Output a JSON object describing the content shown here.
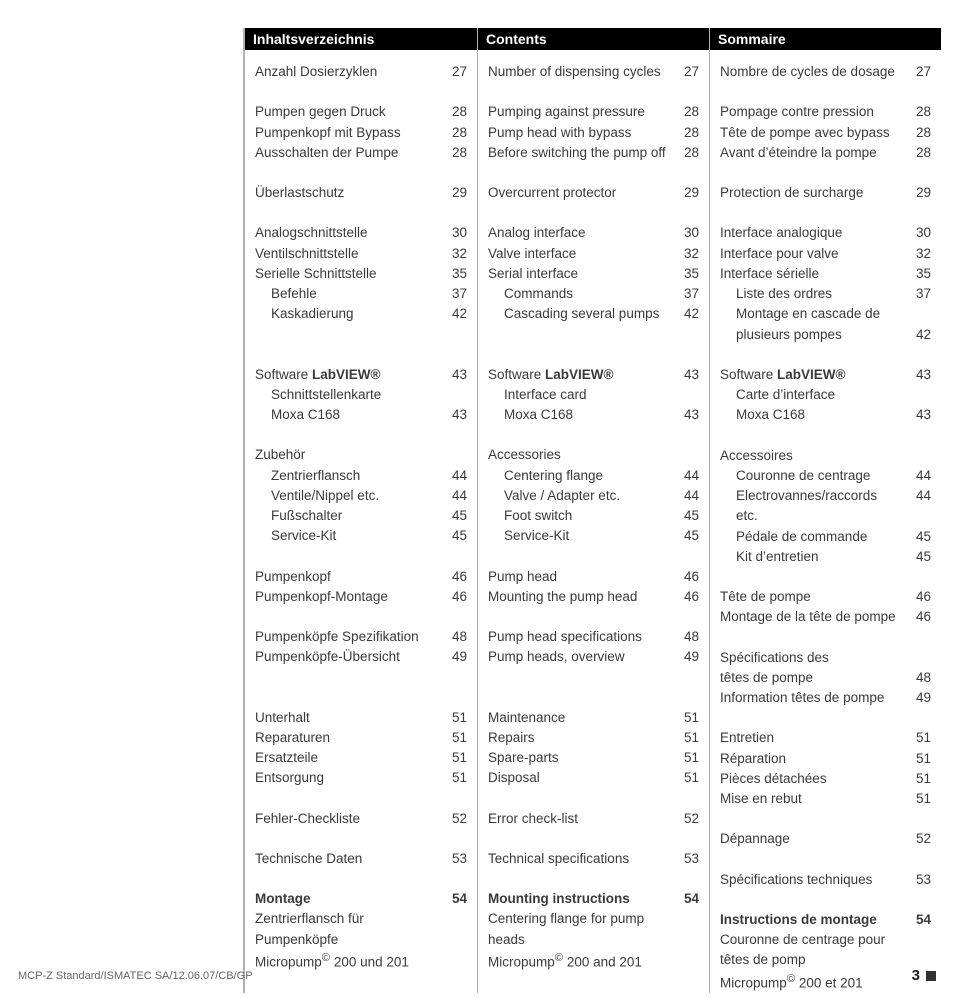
{
  "footer_left": "MCP-Z Standard/ISMATEC SA/12.06.07/CB/GP",
  "footer_page": "3",
  "columns": [
    {
      "header": "Inhaltsverzeichnis",
      "rows": [
        {
          "t": "item",
          "label": "Anzahl Dosierzyklen",
          "pg": "27"
        },
        {
          "t": "spacer"
        },
        {
          "t": "item",
          "label": "Pumpen gegen Druck",
          "pg": "28"
        },
        {
          "t": "item",
          "label": "Pumpenkopf mit Bypass",
          "pg": "28"
        },
        {
          "t": "item",
          "label": "Ausschalten der Pumpe",
          "pg": "28"
        },
        {
          "t": "spacer"
        },
        {
          "t": "item",
          "label": "Überlastschutz",
          "pg": "29"
        },
        {
          "t": "spacer"
        },
        {
          "t": "item",
          "label": "Analogschnittstelle",
          "pg": "30"
        },
        {
          "t": "item",
          "label": "Ventilschnittstelle",
          "pg": "32"
        },
        {
          "t": "item",
          "label": "Serielle Schnittstelle",
          "pg": "35"
        },
        {
          "t": "item",
          "label": "Befehle",
          "pg": "37",
          "indent": true
        },
        {
          "t": "item",
          "label": "Kaskadierung",
          "pg": "42",
          "indent": true
        },
        {
          "t": "spacer"
        },
        {
          "t": "spacer"
        },
        {
          "t": "item",
          "label_html": "Software <b>LabVIEW®</b>",
          "pg": "43"
        },
        {
          "t": "item",
          "label": "Schnittstellenkarte",
          "indent": true
        },
        {
          "t": "item",
          "label": "Moxa C168",
          "pg": "43",
          "indent": true
        },
        {
          "t": "spacer"
        },
        {
          "t": "item",
          "label": "Zubehör"
        },
        {
          "t": "item",
          "label": "Zentrierflansch",
          "pg": "44",
          "indent": true
        },
        {
          "t": "item",
          "label": "Ventile/Nippel etc.",
          "pg": "44",
          "indent": true
        },
        {
          "t": "item",
          "label": "Fußschalter",
          "pg": "45",
          "indent": true
        },
        {
          "t": "item",
          "label": "Service-Kit",
          "pg": "45",
          "indent": true
        },
        {
          "t": "spacer"
        },
        {
          "t": "item",
          "label": "Pumpenkopf",
          "pg": "46"
        },
        {
          "t": "item",
          "label": "Pumpenkopf-Montage",
          "pg": "46"
        },
        {
          "t": "spacer"
        },
        {
          "t": "item",
          "label": "Pumpenköpfe Spezifikation",
          "pg": "48"
        },
        {
          "t": "item",
          "label": "Pumpenköpfe-Übersicht",
          "pg": "49"
        },
        {
          "t": "spacer"
        },
        {
          "t": "spacer"
        },
        {
          "t": "item",
          "label": "Unterhalt",
          "pg": "51"
        },
        {
          "t": "item",
          "label": "Reparaturen",
          "pg": "51"
        },
        {
          "t": "item",
          "label": "Ersatzteile",
          "pg": "51"
        },
        {
          "t": "item",
          "label": "Entsorgung",
          "pg": "51"
        },
        {
          "t": "spacer"
        },
        {
          "t": "item",
          "label": "Fehler-Checkliste",
          "pg": "52"
        },
        {
          "t": "spacer"
        },
        {
          "t": "item",
          "label": "Technische Daten",
          "pg": "53"
        },
        {
          "t": "spacer"
        },
        {
          "t": "item",
          "label": "Montage",
          "pg": "54",
          "bold": true
        },
        {
          "t": "item",
          "label": "Zentrierflansch für Pumpenköpfe"
        },
        {
          "t": "item",
          "label_html": "Micropump<sup>©</sup> 200 und 201"
        }
      ]
    },
    {
      "header": "Contents",
      "rows": [
        {
          "t": "item",
          "label": "Number of dispensing cycles",
          "pg": "27"
        },
        {
          "t": "spacer"
        },
        {
          "t": "item",
          "label": "Pumping against pressure",
          "pg": "28"
        },
        {
          "t": "item",
          "label": "Pump head with bypass",
          "pg": "28"
        },
        {
          "t": "item",
          "label": "Before switching the pump off",
          "pg": "28"
        },
        {
          "t": "spacer"
        },
        {
          "t": "item",
          "label": "Overcurrent protector",
          "pg": "29"
        },
        {
          "t": "spacer"
        },
        {
          "t": "item",
          "label": "Analog interface",
          "pg": "30"
        },
        {
          "t": "item",
          "label": "Valve interface",
          "pg": "32"
        },
        {
          "t": "item",
          "label": "Serial interface",
          "pg": "35"
        },
        {
          "t": "item",
          "label": "Commands",
          "pg": "37",
          "indent": true
        },
        {
          "t": "item",
          "label": "Cascading several pumps",
          "pg": "42",
          "indent": true
        },
        {
          "t": "spacer"
        },
        {
          "t": "spacer"
        },
        {
          "t": "item",
          "label_html": "Software <b>LabVIEW®</b>",
          "pg": "43"
        },
        {
          "t": "item",
          "label": "Interface card",
          "indent": true
        },
        {
          "t": "item",
          "label": "Moxa C168",
          "pg": "43",
          "indent": true
        },
        {
          "t": "spacer"
        },
        {
          "t": "item",
          "label": "Accessories"
        },
        {
          "t": "item",
          "label": "Centering flange",
          "pg": "44",
          "indent": true
        },
        {
          "t": "item",
          "label": "Valve / Adapter etc.",
          "pg": "44",
          "indent": true
        },
        {
          "t": "item",
          "label": "Foot switch",
          "pg": "45",
          "indent": true
        },
        {
          "t": "item",
          "label": "Service-Kit",
          "pg": "45",
          "indent": true
        },
        {
          "t": "spacer"
        },
        {
          "t": "item",
          "label": "Pump head",
          "pg": "46"
        },
        {
          "t": "item",
          "label": "Mounting the pump head",
          "pg": "46"
        },
        {
          "t": "spacer"
        },
        {
          "t": "item",
          "label": "Pump head specifications",
          "pg": "48"
        },
        {
          "t": "item",
          "label": "Pump heads, overview",
          "pg": "49"
        },
        {
          "t": "spacer"
        },
        {
          "t": "spacer"
        },
        {
          "t": "item",
          "label": "Maintenance",
          "pg": "51"
        },
        {
          "t": "item",
          "label": "Repairs",
          "pg": "51"
        },
        {
          "t": "item",
          "label": "Spare-parts",
          "pg": "51"
        },
        {
          "t": "item",
          "label": "Disposal",
          "pg": "51"
        },
        {
          "t": "spacer"
        },
        {
          "t": "item",
          "label": "Error check-list",
          "pg": "52"
        },
        {
          "t": "spacer"
        },
        {
          "t": "item",
          "label": "Technical specifications",
          "pg": "53"
        },
        {
          "t": "spacer"
        },
        {
          "t": "item",
          "label": "Mounting instructions",
          "pg": "54",
          "bold": true
        },
        {
          "t": "item",
          "label": "Centering flange for pump heads"
        },
        {
          "t": "item",
          "label_html": "Micropump<sup>©</sup> 200 and 201"
        }
      ]
    },
    {
      "header": "Sommaire",
      "rows": [
        {
          "t": "item",
          "label": "Nombre de cycles de dosage",
          "pg": "27"
        },
        {
          "t": "spacer"
        },
        {
          "t": "item",
          "label": "Pompage contre pression",
          "pg": "28"
        },
        {
          "t": "item",
          "label": "Tête de pompe avec bypass",
          "pg": "28"
        },
        {
          "t": "item",
          "label": "Avant d’éteindre la pompe",
          "pg": "28"
        },
        {
          "t": "spacer"
        },
        {
          "t": "item",
          "label": "Protection de surcharge",
          "pg": "29"
        },
        {
          "t": "spacer"
        },
        {
          "t": "item",
          "label": "Interface analogique",
          "pg": "30"
        },
        {
          "t": "item",
          "label": "Interface pour valve",
          "pg": "32"
        },
        {
          "t": "item",
          "label": "Interface sérielle",
          "pg": "35"
        },
        {
          "t": "item",
          "label": "Liste des ordres",
          "pg": "37",
          "indent": true
        },
        {
          "t": "item",
          "label": "Montage en cascade de",
          "indent": true
        },
        {
          "t": "item",
          "label": "plusieurs pompes",
          "pg": "42",
          "indent": true
        },
        {
          "t": "spacer"
        },
        {
          "t": "item",
          "label_html": "Software <b>LabVIEW®</b>",
          "pg": "43"
        },
        {
          "t": "item",
          "label": "Carte d’interface",
          "indent": true
        },
        {
          "t": "item",
          "label": "Moxa C168",
          "pg": "43",
          "indent": true
        },
        {
          "t": "spacer"
        },
        {
          "t": "item",
          "label": "Accessoires"
        },
        {
          "t": "item",
          "label": "Couronne de centrage",
          "pg": "44",
          "indent": true
        },
        {
          "t": "item",
          "label": "Electrovannes/raccords etc.",
          "pg": "44",
          "indent": true
        },
        {
          "t": "item",
          "label": "Pédale de commande",
          "pg": "45",
          "indent": true
        },
        {
          "t": "item",
          "label": "Kit d’entretien",
          "pg": "45",
          "indent": true
        },
        {
          "t": "spacer"
        },
        {
          "t": "item",
          "label": "Tête de pompe",
          "pg": "46"
        },
        {
          "t": "item",
          "label": "Montage de la tête de pompe",
          "pg": "46"
        },
        {
          "t": "spacer"
        },
        {
          "t": "item",
          "label": "Spécifications des"
        },
        {
          "t": "item",
          "label": "têtes de pompe",
          "pg": "48"
        },
        {
          "t": "item",
          "label": "Information têtes de pompe",
          "pg": "49"
        },
        {
          "t": "spacer"
        },
        {
          "t": "item",
          "label": "Entretien",
          "pg": "51"
        },
        {
          "t": "item",
          "label": "Réparation",
          "pg": "51"
        },
        {
          "t": "item",
          "label": "Pièces détachées",
          "pg": "51"
        },
        {
          "t": "item",
          "label": "Mise en rebut",
          "pg": "51"
        },
        {
          "t": "spacer"
        },
        {
          "t": "item",
          "label": "Dépannage",
          "pg": "52"
        },
        {
          "t": "spacer"
        },
        {
          "t": "item",
          "label": "Spécifications techniques",
          "pg": "53"
        },
        {
          "t": "spacer"
        },
        {
          "t": "item",
          "label": "Instructions de montage",
          "pg": "54",
          "bold": true
        },
        {
          "t": "item",
          "label": "Couronne de centrage pour"
        },
        {
          "t": "item",
          "label": "têtes de pomp"
        },
        {
          "t": "item",
          "label_html": "Micropump<sup>©</sup> 200 et 201"
        }
      ]
    }
  ]
}
